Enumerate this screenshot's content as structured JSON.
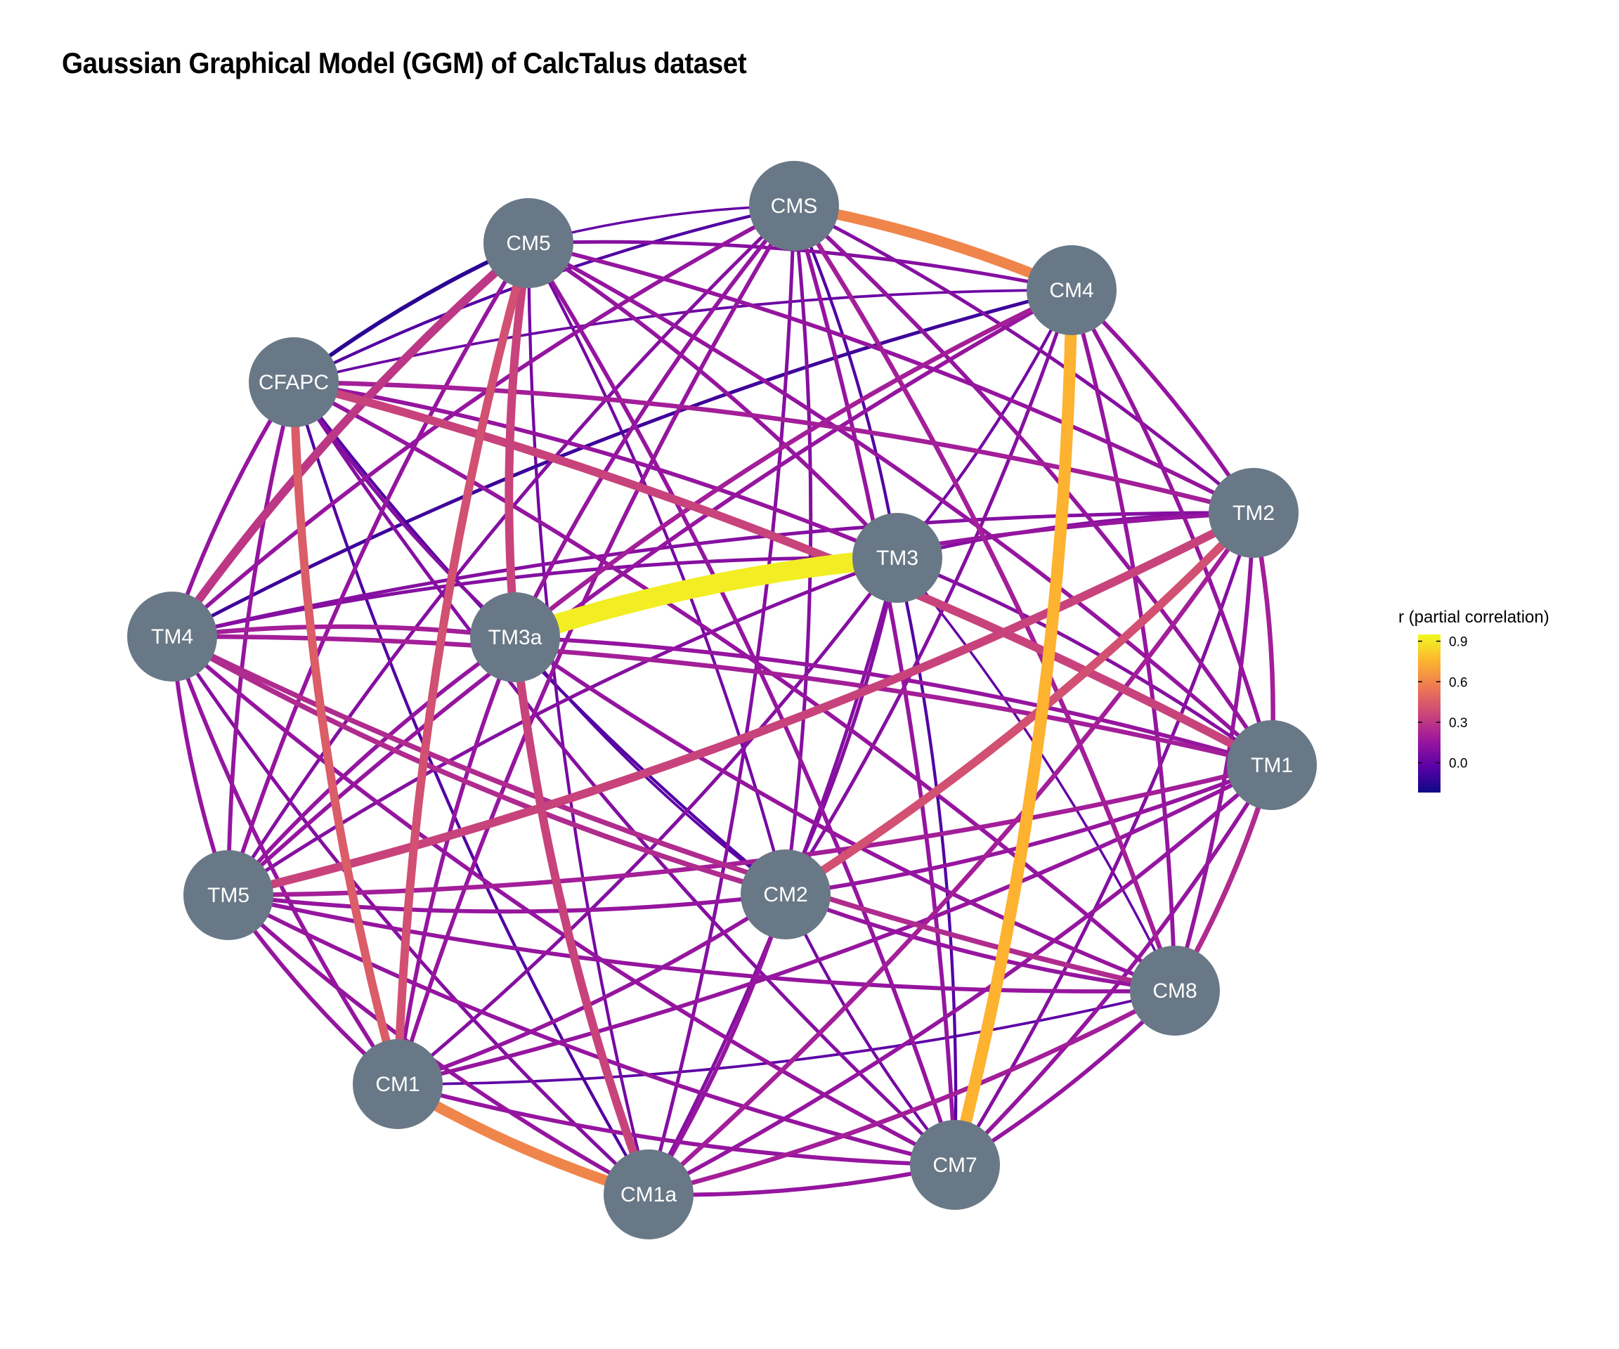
{
  "title": "Gaussian Graphical Model (GGM) of CalcTalus dataset",
  "node_color": "#697886",
  "node_label_color": "#ffffff",
  "nodes": [
    {
      "id": "CMS",
      "label": "CMS"
    },
    {
      "id": "CM4",
      "label": "CM4"
    },
    {
      "id": "TM2",
      "label": "TM2"
    },
    {
      "id": "TM1",
      "label": "TM1"
    },
    {
      "id": "CM8",
      "label": "CM8"
    },
    {
      "id": "CM7",
      "label": "CM7"
    },
    {
      "id": "CM1a",
      "label": "CM1a"
    },
    {
      "id": "CM1",
      "label": "CM1"
    },
    {
      "id": "TM5",
      "label": "TM5"
    },
    {
      "id": "TM4",
      "label": "TM4"
    },
    {
      "id": "CFAPC",
      "label": "CFAPC"
    },
    {
      "id": "CM5",
      "label": "CM5"
    },
    {
      "id": "TM3",
      "label": "TM3"
    },
    {
      "id": "TM3a",
      "label": "TM3a"
    },
    {
      "id": "CM2",
      "label": "CM2"
    }
  ],
  "edges": [
    {
      "from": "TM3",
      "to": "TM3a",
      "r": 0.92
    },
    {
      "from": "CM4",
      "to": "CM7",
      "r": 0.75
    },
    {
      "from": "CMS",
      "to": "CM4",
      "r": 0.6
    },
    {
      "from": "CM1",
      "to": "CM1a",
      "r": 0.6
    },
    {
      "from": "CFAPC",
      "to": "CM1",
      "r": 0.45
    },
    {
      "from": "CM5",
      "to": "CM1",
      "r": 0.4
    },
    {
      "from": "CM5",
      "to": "TM3a",
      "r": 0.35
    },
    {
      "from": "TM3a",
      "to": "CM1a",
      "r": 0.35
    },
    {
      "from": "CFAPC",
      "to": "TM1",
      "r": 0.35
    },
    {
      "from": "TM2",
      "to": "CM2",
      "r": 0.4
    },
    {
      "from": "TM2",
      "to": "TM5",
      "r": 0.35
    },
    {
      "from": "CM5",
      "to": "TM4",
      "r": 0.3
    },
    {
      "from": "CFAPC",
      "to": "CM5",
      "r": -0.15
    },
    {
      "from": "CM4",
      "to": "TM4",
      "r": -0.1
    },
    {
      "from": "CMS",
      "to": "CFAPC",
      "r": -0.05
    },
    {
      "from": "CMS",
      "to": "TM3",
      "r": -0.05
    },
    {
      "from": "CM7",
      "to": "TM3",
      "r": -0.05
    },
    {
      "from": "CFAPC",
      "to": "CM2",
      "r": -0.05
    },
    {
      "from": "CFAPC",
      "to": "CM1a",
      "r": -0.05
    },
    {
      "from": "CM5",
      "to": "CM2",
      "r": 0.05
    },
    {
      "from": "TM3a",
      "to": "CM2",
      "r": -0.02
    },
    {
      "from": "TM3",
      "to": "CM8",
      "r": 0.0
    },
    {
      "from": "CM1",
      "to": "CM8",
      "r": -0.02
    },
    {
      "from": "CMS",
      "to": "CM5",
      "r": 0.0
    },
    {
      "from": "CM4",
      "to": "CFAPC",
      "r": 0.02
    },
    {
      "from": "CM4",
      "to": "TM3",
      "r": 0.05
    },
    {
      "from": "CM4",
      "to": "TM2",
      "r": 0.15
    },
    {
      "from": "CM4",
      "to": "TM1",
      "r": 0.15
    },
    {
      "from": "CM4",
      "to": "CM8",
      "r": 0.15
    },
    {
      "from": "CM4",
      "to": "CM5",
      "r": 0.1
    },
    {
      "from": "CM4",
      "to": "TM3a",
      "r": 0.2
    },
    {
      "from": "CM4",
      "to": "TM5",
      "r": 0.15
    },
    {
      "from": "CM4",
      "to": "CM2",
      "r": 0.1
    },
    {
      "from": "CMS",
      "to": "TM2",
      "r": 0.1
    },
    {
      "from": "CMS",
      "to": "TM1",
      "r": 0.15
    },
    {
      "from": "CMS",
      "to": "CM8",
      "r": 0.2
    },
    {
      "from": "CMS",
      "to": "CM7",
      "r": 0.15
    },
    {
      "from": "CMS",
      "to": "CM1a",
      "r": 0.1
    },
    {
      "from": "CMS",
      "to": "CM1",
      "r": 0.15
    },
    {
      "from": "CMS",
      "to": "TM5",
      "r": 0.1
    },
    {
      "from": "CMS",
      "to": "TM4",
      "r": 0.15
    },
    {
      "from": "CMS",
      "to": "TM3a",
      "r": 0.15
    },
    {
      "from": "CMS",
      "to": "CM2",
      "r": 0.1
    },
    {
      "from": "TM2",
      "to": "TM1",
      "r": 0.2
    },
    {
      "from": "TM2",
      "to": "CM8",
      "r": 0.15
    },
    {
      "from": "TM2",
      "to": "CM7",
      "r": 0.1
    },
    {
      "from": "TM2",
      "to": "CM1a",
      "r": 0.2
    },
    {
      "from": "TM2",
      "to": "CM5",
      "r": 0.15
    },
    {
      "from": "TM2",
      "to": "CFAPC",
      "r": 0.2
    },
    {
      "from": "TM2",
      "to": "TM3",
      "r": 0.1
    },
    {
      "from": "TM2",
      "to": "TM3a",
      "r": 0.15
    },
    {
      "from": "TM2",
      "to": "TM4",
      "r": 0.1
    },
    {
      "from": "TM1",
      "to": "CM8",
      "r": 0.25
    },
    {
      "from": "TM1",
      "to": "CM7",
      "r": 0.15
    },
    {
      "from": "TM1",
      "to": "CM1a",
      "r": 0.15
    },
    {
      "from": "TM1",
      "to": "CM1",
      "r": 0.15
    },
    {
      "from": "TM1",
      "to": "TM5",
      "r": 0.2
    },
    {
      "from": "TM1",
      "to": "TM4",
      "r": 0.2
    },
    {
      "from": "TM1",
      "to": "CM5",
      "r": 0.15
    },
    {
      "from": "TM1",
      "to": "TM3",
      "r": 0.1
    },
    {
      "from": "TM1",
      "to": "TM3a",
      "r": 0.15
    },
    {
      "from": "TM1",
      "to": "CM2",
      "r": 0.15
    },
    {
      "from": "CM8",
      "to": "CM7",
      "r": 0.15
    },
    {
      "from": "CM8",
      "to": "CM1a",
      "r": 0.2
    },
    {
      "from": "CM8",
      "to": "TM5",
      "r": 0.15
    },
    {
      "from": "CM8",
      "to": "TM4",
      "r": 0.25
    },
    {
      "from": "CM8",
      "to": "CFAPC",
      "r": 0.15
    },
    {
      "from": "CM8",
      "to": "TM3a",
      "r": 0.15
    },
    {
      "from": "CM8",
      "to": "CM2",
      "r": 0.15
    },
    {
      "from": "CM7",
      "to": "CM1a",
      "r": 0.15
    },
    {
      "from": "CM7",
      "to": "CM1",
      "r": 0.15
    },
    {
      "from": "CM7",
      "to": "TM5",
      "r": 0.15
    },
    {
      "from": "CM7",
      "to": "TM4",
      "r": 0.15
    },
    {
      "from": "CM7",
      "to": "CFAPC",
      "r": 0.1
    },
    {
      "from": "CM7",
      "to": "CM5",
      "r": 0.15
    },
    {
      "from": "CM7",
      "to": "CM2",
      "r": 0.05
    },
    {
      "from": "CM1a",
      "to": "TM5",
      "r": 0.15
    },
    {
      "from": "CM1a",
      "to": "TM4",
      "r": 0.1
    },
    {
      "from": "CM1a",
      "to": "CM5",
      "r": 0.05
    },
    {
      "from": "CM1a",
      "to": "TM3",
      "r": 0.1
    },
    {
      "from": "CM1a",
      "to": "CM2",
      "r": 0.15
    },
    {
      "from": "CM1",
      "to": "TM5",
      "r": 0.15
    },
    {
      "from": "CM1",
      "to": "TM4",
      "r": 0.15
    },
    {
      "from": "CM1",
      "to": "TM3",
      "r": 0.1
    },
    {
      "from": "CM1",
      "to": "TM3a",
      "r": 0.15
    },
    {
      "from": "CM1",
      "to": "CM2",
      "r": 0.15
    },
    {
      "from": "TM5",
      "to": "TM4",
      "r": 0.15
    },
    {
      "from": "TM5",
      "to": "CFAPC",
      "r": 0.15
    },
    {
      "from": "TM5",
      "to": "CM5",
      "r": 0.15
    },
    {
      "from": "TM5",
      "to": "TM3",
      "r": 0.1
    },
    {
      "from": "TM5",
      "to": "TM3a",
      "r": 0.15
    },
    {
      "from": "TM5",
      "to": "CM2",
      "r": 0.15
    },
    {
      "from": "TM4",
      "to": "CFAPC",
      "r": 0.15
    },
    {
      "from": "TM4",
      "to": "TM3",
      "r": 0.1
    },
    {
      "from": "TM4",
      "to": "TM3a",
      "r": 0.2
    },
    {
      "from": "TM4",
      "to": "CM2",
      "r": 0.25
    },
    {
      "from": "CFAPC",
      "to": "TM3",
      "r": 0.15
    },
    {
      "from": "CFAPC",
      "to": "TM3a",
      "r": 0.1
    },
    {
      "from": "CM5",
      "to": "TM3",
      "r": 0.15
    },
    {
      "from": "TM3",
      "to": "CM2",
      "r": 0.1
    }
  ],
  "legend": {
    "title": "r (partial correlation)",
    "ticks": [
      {
        "value": 0.9,
        "label": "0.9"
      },
      {
        "value": 0.6,
        "label": "0.6"
      },
      {
        "value": 0.3,
        "label": "0.3"
      },
      {
        "value": 0.0,
        "label": "0.0"
      }
    ],
    "range": [
      -0.22,
      0.95
    ],
    "colors": [
      "#0d0887",
      "#5c01a6",
      "#9c179e",
      "#cc4778",
      "#ed7953",
      "#fdb42f",
      "#f0f921"
    ]
  }
}
